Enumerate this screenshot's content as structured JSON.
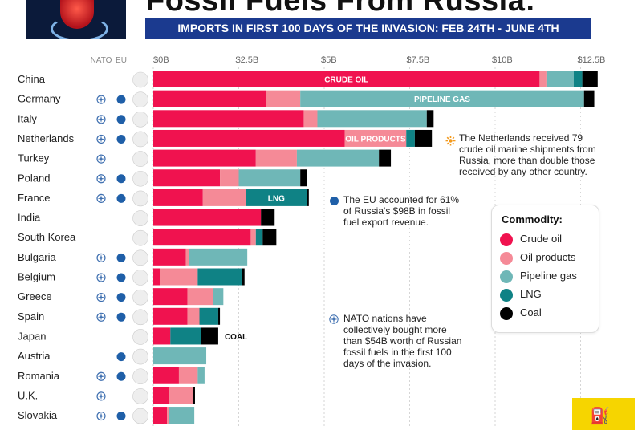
{
  "header": {
    "title": "Fossil Fuels From Russia:",
    "subtitle": "IMPORTS IN FIRST 100 DAYS OF THE INVASION:  FEB 24TH - JUNE 4TH"
  },
  "column_headers": {
    "nato": "NATO",
    "eu": "EU"
  },
  "colors": {
    "crude_oil": "#f0124f",
    "oil_products": "#f58a97",
    "pipeline_gas": "#6fb7b7",
    "lng": "#0f8285",
    "coal": "#000000",
    "nato_icon": "#3e6fb0",
    "eu_icon": "#1f5fa8"
  },
  "chart_data": {
    "type": "bar",
    "orientation": "horizontal",
    "stacked": true,
    "xlim": [
      0,
      13.5
    ],
    "unit": "$B",
    "ticks": [
      "$0B",
      "$2.5B",
      "$5B",
      "$7.5B",
      "$10B",
      "$12.5B"
    ],
    "tick_values": [
      0,
      2.5,
      5,
      7.5,
      10,
      12.5
    ],
    "categories": [
      "China",
      "Germany",
      "Italy",
      "Netherlands",
      "Turkey",
      "Poland",
      "France",
      "India",
      "South Korea",
      "Bulgaria",
      "Belgium",
      "Greece",
      "Spain",
      "Japan",
      "Austria",
      "Romania",
      "U.K.",
      "Slovakia"
    ],
    "nato": [
      false,
      true,
      true,
      true,
      true,
      true,
      true,
      false,
      false,
      true,
      true,
      true,
      true,
      false,
      false,
      true,
      true,
      true
    ],
    "eu": [
      false,
      true,
      true,
      true,
      false,
      true,
      true,
      false,
      false,
      true,
      true,
      true,
      true,
      false,
      true,
      true,
      false,
      true
    ],
    "series": [
      {
        "name": "Crude oil",
        "values": [
          11.3,
          3.3,
          4.4,
          5.6,
          3.0,
          1.95,
          1.45,
          3.15,
          2.85,
          0.95,
          0.2,
          1.0,
          1.0,
          0.5,
          0.0,
          0.75,
          0.45,
          0.4
        ]
      },
      {
        "name": "Oil products",
        "values": [
          0.2,
          1.0,
          0.4,
          1.8,
          1.2,
          0.55,
          1.25,
          0.0,
          0.15,
          0.1,
          1.1,
          0.75,
          0.35,
          0.0,
          0.0,
          0.55,
          0.7,
          0.05
        ]
      },
      {
        "name": "Pipeline gas",
        "values": [
          0.8,
          8.3,
          3.2,
          0.0,
          2.4,
          1.8,
          0.0,
          0.0,
          0.0,
          1.7,
          0.0,
          0.3,
          0.0,
          0.0,
          1.55,
          0.2,
          0.0,
          0.75
        ]
      },
      {
        "name": "LNG",
        "values": [
          0.25,
          0.0,
          0.0,
          0.25,
          0.0,
          0.0,
          1.8,
          0.0,
          0.2,
          0.0,
          1.3,
          0.0,
          0.55,
          0.9,
          0.0,
          0.0,
          0.0,
          0.0
        ]
      },
      {
        "name": "Coal",
        "values": [
          0.45,
          0.3,
          0.2,
          0.5,
          0.35,
          0.2,
          0.05,
          0.4,
          0.4,
          0.0,
          0.07,
          0.0,
          0.05,
          0.5,
          0.0,
          0.0,
          0.07,
          0.0
        ]
      }
    ],
    "bar_labels": [
      {
        "row": 0,
        "series": 0,
        "text": "CRUDE OIL"
      },
      {
        "row": 1,
        "series": 2,
        "text": "PIPELINE GAS"
      },
      {
        "row": 3,
        "series": 1,
        "text": "OIL PRODUCTS"
      },
      {
        "row": 6,
        "series": 3,
        "text": "LNG"
      }
    ],
    "outside_labels": [
      {
        "row": 13,
        "text": "COAL"
      }
    ]
  },
  "notes": [
    {
      "id": "netherlands",
      "lines": [
        "The Netherlands received 79",
        "crude oil marine shipments from",
        "Russia, more than double those",
        "received by any other country."
      ]
    },
    {
      "id": "eu",
      "lines": [
        "The EU accounted for 61%",
        "of Russia's $98B in fossil",
        "fuel export revenue."
      ]
    },
    {
      "id": "nato",
      "lines": [
        "NATO nations have",
        "collectively bought more",
        "than $54B worth of Russian",
        "fossil fuels in the first 100",
        "days of the invasion."
      ]
    }
  ],
  "legend": {
    "title": "Commodity:",
    "items": [
      "Crude oil",
      "Oil products",
      "Pipeline gas",
      "LNG",
      "Coal"
    ]
  }
}
